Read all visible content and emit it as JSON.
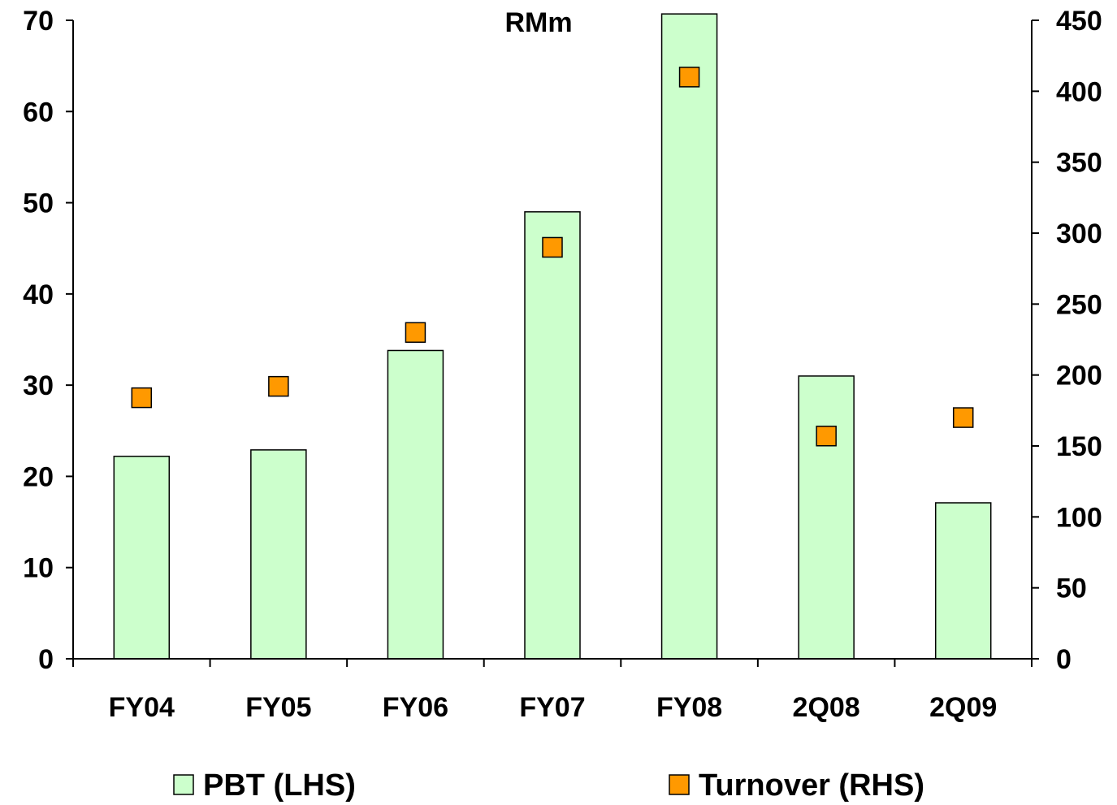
{
  "chart_data": {
    "type": "bar",
    "unit_label": "RMm",
    "categories": [
      "FY04",
      "FY05",
      "FY06",
      "FY07",
      "FY08",
      "2Q08",
      "2Q09"
    ],
    "series": [
      {
        "name": "PBT (LHS)",
        "kind": "bar",
        "axis": "left",
        "color": "#ccffcc",
        "values": [
          22.2,
          22.9,
          33.8,
          49.0,
          70.8,
          31.0,
          17.1
        ]
      },
      {
        "name": "Turnover (RHS)",
        "kind": "marker",
        "axis": "right",
        "color": "#ff9900",
        "values": [
          184,
          192,
          230,
          290,
          410,
          157,
          170
        ]
      }
    ],
    "left_axis": {
      "ylim": [
        0,
        70
      ],
      "ticks": [
        "0",
        "10",
        "20",
        "30",
        "40",
        "50",
        "60",
        "70"
      ]
    },
    "right_axis": {
      "ylim": [
        0,
        450
      ],
      "ticks": [
        "0",
        "50",
        "100",
        "150",
        "200",
        "250",
        "300",
        "350",
        "400",
        "450"
      ]
    },
    "grid": false,
    "legend_position": "bottom"
  }
}
